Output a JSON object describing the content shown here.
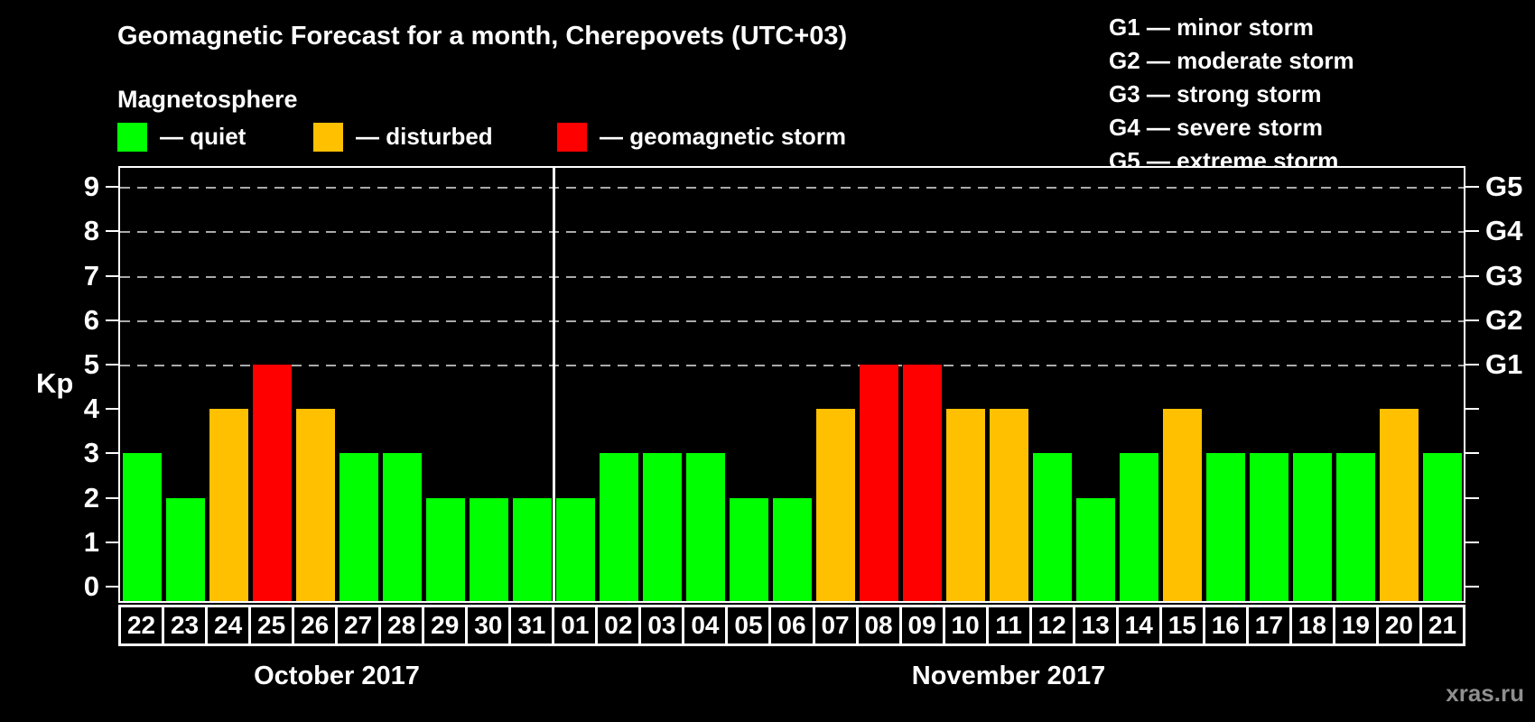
{
  "header": {
    "title": "Geomagnetic Forecast for a month, Cherepovets (UTC+03)",
    "subtitle": "Magnetosphere"
  },
  "colors": {
    "quiet": "#00ff00",
    "disturbed": "#ffc000",
    "storm": "#ff0000",
    "grid": "#aaaaaa",
    "axis": "#ffffff"
  },
  "legend": {
    "items": [
      {
        "status": "quiet",
        "label": "— quiet"
      },
      {
        "status": "disturbed",
        "label": "— disturbed"
      },
      {
        "status": "storm",
        "label": "— geomagnetic storm"
      }
    ]
  },
  "g_legend": {
    "lines": [
      "G1 — minor storm",
      "G2 — moderate storm",
      "G3 — strong storm",
      "G4 — severe storm",
      "G5 — extreme storm"
    ]
  },
  "axes": {
    "y_label": "Kp",
    "y_ticks": [
      0,
      1,
      2,
      3,
      4,
      5,
      6,
      7,
      8,
      9
    ],
    "right_labels": [
      {
        "kp": 5,
        "label": "G1"
      },
      {
        "kp": 6,
        "label": "G2"
      },
      {
        "kp": 7,
        "label": "G3"
      },
      {
        "kp": 8,
        "label": "G4"
      },
      {
        "kp": 9,
        "label": "G5"
      }
    ]
  },
  "chart_data": {
    "type": "bar",
    "title": "Geomagnetic Forecast for a month, Cherepovets (UTC+03)",
    "xlabel": "",
    "ylabel": "Kp",
    "ylim": [
      0,
      9
    ],
    "grid_levels": [
      5,
      6,
      7,
      8,
      9
    ],
    "grid_style": "dashed gray horizontal lines at G-storm levels only",
    "legend_position": "top-left",
    "categories": [
      "22",
      "23",
      "24",
      "25",
      "26",
      "27",
      "28",
      "29",
      "30",
      "31",
      "01",
      "02",
      "03",
      "04",
      "05",
      "06",
      "07",
      "08",
      "09",
      "10",
      "11",
      "12",
      "13",
      "14",
      "15",
      "16",
      "17",
      "18",
      "19",
      "20",
      "21"
    ],
    "values": [
      3,
      2,
      4,
      5,
      4,
      3,
      3,
      2,
      2,
      2,
      2,
      3,
      3,
      3,
      2,
      2,
      4,
      5,
      5,
      4,
      4,
      3,
      2,
      3,
      4,
      3,
      3,
      3,
      3,
      4,
      3
    ],
    "statuses": [
      "quiet",
      "quiet",
      "disturbed",
      "storm",
      "disturbed",
      "quiet",
      "quiet",
      "quiet",
      "quiet",
      "quiet",
      "quiet",
      "quiet",
      "quiet",
      "quiet",
      "quiet",
      "quiet",
      "disturbed",
      "storm",
      "storm",
      "disturbed",
      "disturbed",
      "quiet",
      "quiet",
      "quiet",
      "disturbed",
      "quiet",
      "quiet",
      "quiet",
      "quiet",
      "disturbed",
      "quiet"
    ],
    "months": [
      {
        "label": "October 2017",
        "start": 0,
        "count": 10
      },
      {
        "label": "November 2017",
        "start": 10,
        "count": 21
      }
    ]
  },
  "watermark": "xras.ru"
}
